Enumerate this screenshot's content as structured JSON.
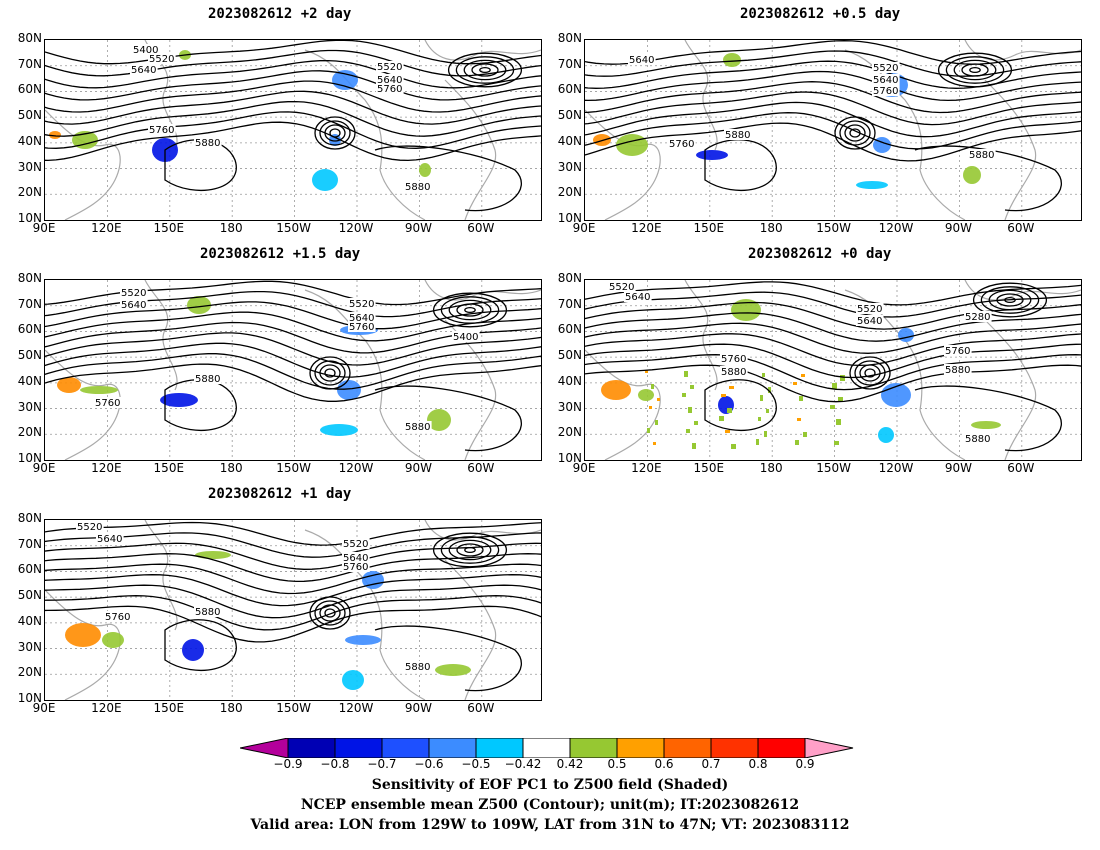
{
  "panels": [
    {
      "id": "p1",
      "title": "2023082612 +2 day"
    },
    {
      "id": "p2",
      "title": "2023082612 +0.5 day"
    },
    {
      "id": "p3",
      "title": "2023082612 +1.5 day"
    },
    {
      "id": "p4",
      "title": "2023082612 +0 day"
    },
    {
      "id": "p5",
      "title": "2023082612 +1 day"
    }
  ],
  "lat_labels": [
    "80N",
    "70N",
    "60N",
    "50N",
    "40N",
    "30N",
    "20N",
    "10N"
  ],
  "lon_labels": [
    "90E",
    "120E",
    "150E",
    "180",
    "150W",
    "120W",
    "90W",
    "60W"
  ],
  "contour_labels": {
    "p1": [
      "5400",
      "5520",
      "5640",
      "5520",
      "5640",
      "5760",
      "5760",
      "5880",
      "5880"
    ],
    "p2": [
      "5640",
      "5520",
      "5640",
      "5760",
      "5760",
      "5880",
      "5880"
    ],
    "p3": [
      "5520",
      "5640",
      "5520",
      "5640",
      "5760",
      "5400",
      "5880",
      "5760",
      "5880"
    ],
    "p4": [
      "5520",
      "5640",
      "5520",
      "5640",
      "5280",
      "5760",
      "5880",
      "5760",
      "5880",
      "5880"
    ],
    "p5": [
      "5520",
      "5640",
      "5520",
      "5640",
      "5760",
      "5760",
      "5880",
      "5880"
    ]
  },
  "colorbar": {
    "labels": [
      "−0.9",
      "−0.8",
      "−0.7",
      "−0.6",
      "−0.5",
      "−0.42",
      "0.42",
      "0.5",
      "0.6",
      "0.7",
      "0.8",
      "0.9"
    ],
    "colors": [
      "#b4009b",
      "#0000b4",
      "#0014e6",
      "#1e50ff",
      "#3c8cff",
      "#00c8ff",
      "#ffffff",
      "#96c832",
      "#ffa000",
      "#ff6400",
      "#ff3200",
      "#ff0000",
      "#ffa0c8"
    ]
  },
  "caption": {
    "line1": "Sensitivity of EOF PC1 to Z500 field (Shaded)",
    "line2": "NCEP ensemble mean Z500 (Contour); unit(m); IT:2023082612",
    "line3": "Valid area: LON from 129W to 109W, LAT from 31N to 47N; VT: 2023083112"
  }
}
